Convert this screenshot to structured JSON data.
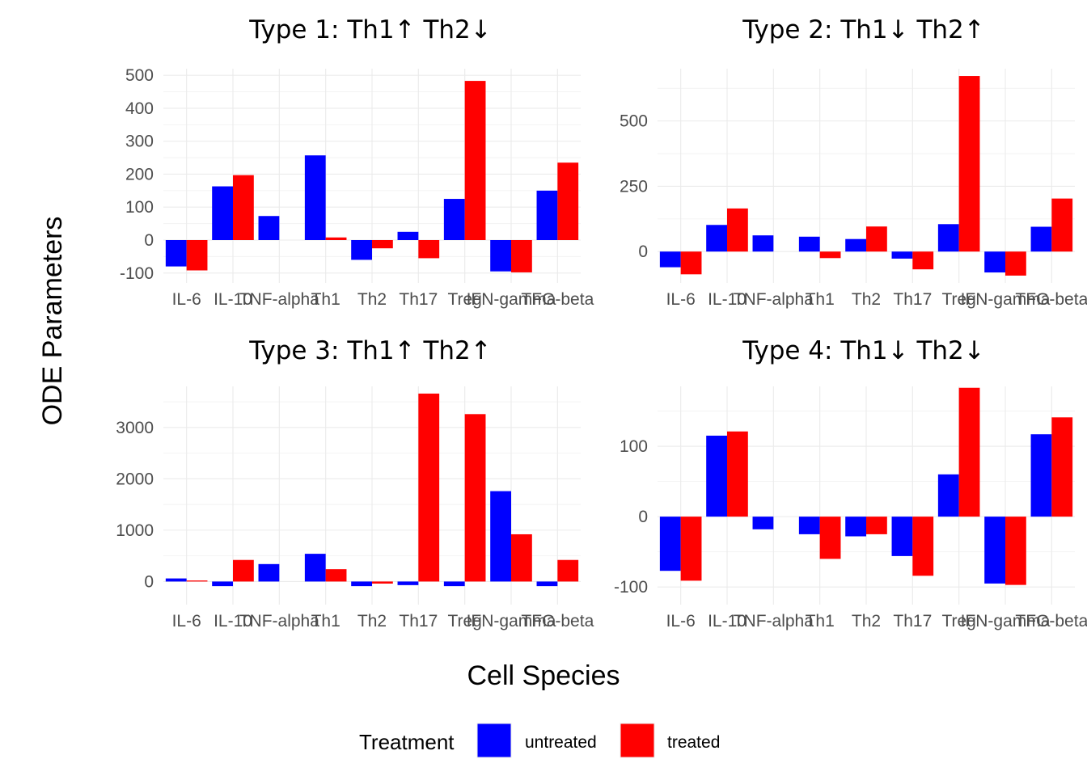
{
  "chart_data": {
    "type": "bar",
    "xlabel": "Cell Species",
    "ylabel": "ODE Parameters",
    "legend": {
      "title": "Treatment",
      "placement": "bottom",
      "entries": [
        {
          "name": "untreated",
          "color": "#0000ff"
        },
        {
          "name": "treated",
          "color": "#ff0000"
        }
      ]
    },
    "grid": true,
    "categories": [
      "IL-6",
      "IL-10",
      "TNF-alpha",
      "Th1",
      "Th2",
      "Th17",
      "Treg",
      "IFN-gamma",
      "TFG-beta"
    ],
    "panels": [
      {
        "title": "Type 1: Th1↑ Th2↓",
        "ylim": [
          -130,
          520
        ],
        "yticks": [
          -100,
          0,
          100,
          200,
          300,
          400,
          500
        ],
        "series": [
          {
            "name": "untreated",
            "values": [
              -80,
              163,
              73,
              257,
              -60,
              25,
              125,
              -95,
              150
            ]
          },
          {
            "name": "treated",
            "values": [
              -92,
              197,
              null,
              8,
              -25,
              -55,
              483,
              -98,
              235
            ]
          }
        ]
      },
      {
        "title": "Type 2: Th1↓ Th2↑",
        "ylim": [
          -120,
          700
        ],
        "yticks": [
          0,
          250,
          500
        ],
        "series": [
          {
            "name": "untreated",
            "values": [
              -60,
              102,
              62,
              57,
              48,
              -27,
              105,
              -80,
              95
            ]
          },
          {
            "name": "treated",
            "values": [
              -87,
              165,
              null,
              -25,
              96,
              -68,
              672,
              -92,
              203
            ]
          }
        ]
      },
      {
        "title": "Type 3: Th1↑ Th2↑",
        "ylim": [
          -450,
          3800
        ],
        "yticks": [
          0,
          1000,
          2000,
          3000
        ],
        "series": [
          {
            "name": "untreated",
            "values": [
              60,
              -90,
              340,
              540,
              -90,
              -70,
              -90,
              1760,
              -90
            ]
          },
          {
            "name": "treated",
            "values": [
              20,
              420,
              null,
              240,
              -40,
              3660,
              3260,
              920,
              420
            ]
          }
        ]
      },
      {
        "title": "Type 4: Th1↓ Th2↓",
        "ylim": [
          -125,
          185
        ],
        "yticks": [
          -100,
          0,
          100
        ],
        "series": [
          {
            "name": "untreated",
            "values": [
              -77,
              115,
              -18,
              -25,
              -28,
              -56,
              60,
              -95,
              117
            ]
          },
          {
            "name": "treated",
            "values": [
              -91,
              121,
              null,
              -60,
              -25,
              -84,
              183,
              -97,
              141
            ]
          }
        ]
      }
    ]
  }
}
